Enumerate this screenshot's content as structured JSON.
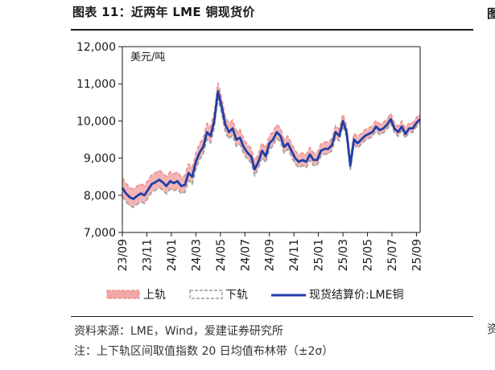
{
  "header": {
    "title": "图表 11：近两年 LME 铜现货价",
    "edge_glyph_top": "图",
    "edge_glyph_bottom": "资"
  },
  "chart_data": {
    "type": "line",
    "title": "图表 11：近两年 LME 铜现货价",
    "unit_label": "美元/吨",
    "xlabel": "",
    "ylabel": "美元/吨",
    "ylim": [
      7000,
      12000
    ],
    "yticks": [
      7000,
      8000,
      9000,
      10000,
      11000,
      12000
    ],
    "ytick_labels": [
      "7,000",
      "8,000",
      "9,000",
      "10,000",
      "11,000",
      "12,000"
    ],
    "x_domain": [
      0,
      24.3
    ],
    "xtick_labels": [
      "23/09",
      "23/11",
      "24/01",
      "24/03",
      "24/05",
      "24/07",
      "24/09",
      "24/11",
      "25/01",
      "25/03",
      "25/05",
      "25/07",
      "25/09"
    ],
    "xtick_positions": [
      0,
      2,
      4,
      6,
      8,
      10,
      12,
      14,
      16,
      18,
      20,
      22,
      24
    ],
    "grid": false,
    "legend_position": "bottom",
    "band_offset_start": 350,
    "band_offset_end": 140,
    "series": [
      {
        "name": "现货结算价:LME铜",
        "color": "#1f3fa8",
        "x": [
          0,
          0.3,
          0.6,
          0.9,
          1.2,
          1.5,
          1.8,
          2.1,
          2.4,
          2.7,
          3.0,
          3.3,
          3.6,
          3.9,
          4.2,
          4.5,
          4.8,
          5.1,
          5.4,
          5.7,
          6.0,
          6.3,
          6.6,
          6.9,
          7.2,
          7.5,
          7.8,
          8.1,
          8.4,
          8.7,
          9.0,
          9.3,
          9.6,
          9.9,
          10.2,
          10.5,
          10.8,
          11.1,
          11.4,
          11.7,
          12.0,
          12.3,
          12.6,
          12.9,
          13.2,
          13.5,
          13.8,
          14.1,
          14.4,
          14.7,
          15.0,
          15.3,
          15.6,
          15.9,
          16.2,
          16.5,
          16.8,
          17.1,
          17.4,
          17.7,
          18.0,
          18.3,
          18.6,
          18.9,
          19.2,
          19.5,
          19.8,
          20.1,
          20.4,
          20.7,
          21.0,
          21.3,
          21.6,
          21.9,
          22.2,
          22.5,
          22.8,
          23.1,
          23.4,
          23.7,
          24.0,
          24.3
        ],
        "values": [
          8200,
          8050,
          7950,
          7900,
          7980,
          8050,
          8000,
          8150,
          8300,
          8350,
          8420,
          8350,
          8250,
          8380,
          8330,
          8380,
          8250,
          8280,
          8600,
          8500,
          8900,
          9150,
          9300,
          9700,
          9600,
          10000,
          10800,
          10400,
          9900,
          9700,
          9800,
          9500,
          9550,
          9300,
          9150,
          9050,
          8700,
          8900,
          9200,
          9050,
          9400,
          9500,
          9700,
          9600,
          9300,
          9400,
          9200,
          9000,
          8900,
          8950,
          8900,
          9100,
          8950,
          8950,
          9200,
          9250,
          9250,
          9350,
          9700,
          9600,
          10000,
          9700,
          8800,
          9500,
          9400,
          9500,
          9600,
          9650,
          9700,
          9850,
          9750,
          9800,
          9900,
          10050,
          9800,
          9700,
          9850,
          9650,
          9800,
          9800,
          9950,
          10050
        ]
      }
    ],
    "band": {
      "upper_label": "上轨",
      "lower_label": "下轨",
      "upper_color": "#f2a7a7",
      "lower_color": "#9a9a9a"
    }
  },
  "footer": {
    "source": "资料来源：LME，Wind，爱建证券研究所",
    "note": "注：上下轨区间取值指数 20 日均值布林带（±2σ）"
  }
}
